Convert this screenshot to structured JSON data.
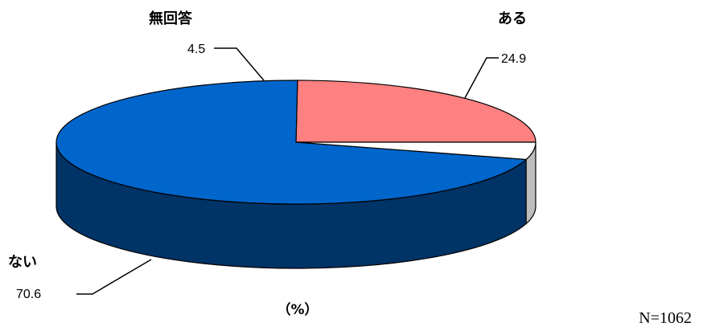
{
  "chart_data": {
    "type": "pie",
    "style": "3d",
    "categories": [
      "ある",
      "ない",
      "無回答"
    ],
    "values": [
      24.9,
      70.6,
      4.5
    ],
    "colors": [
      "#ff8080",
      "#0066cc",
      "#ffffff"
    ],
    "side_colors": [
      "#5a2a2a",
      "#003366",
      "#bdbdbd"
    ],
    "unit_label": "（%）",
    "sample_size": "N=1062"
  }
}
